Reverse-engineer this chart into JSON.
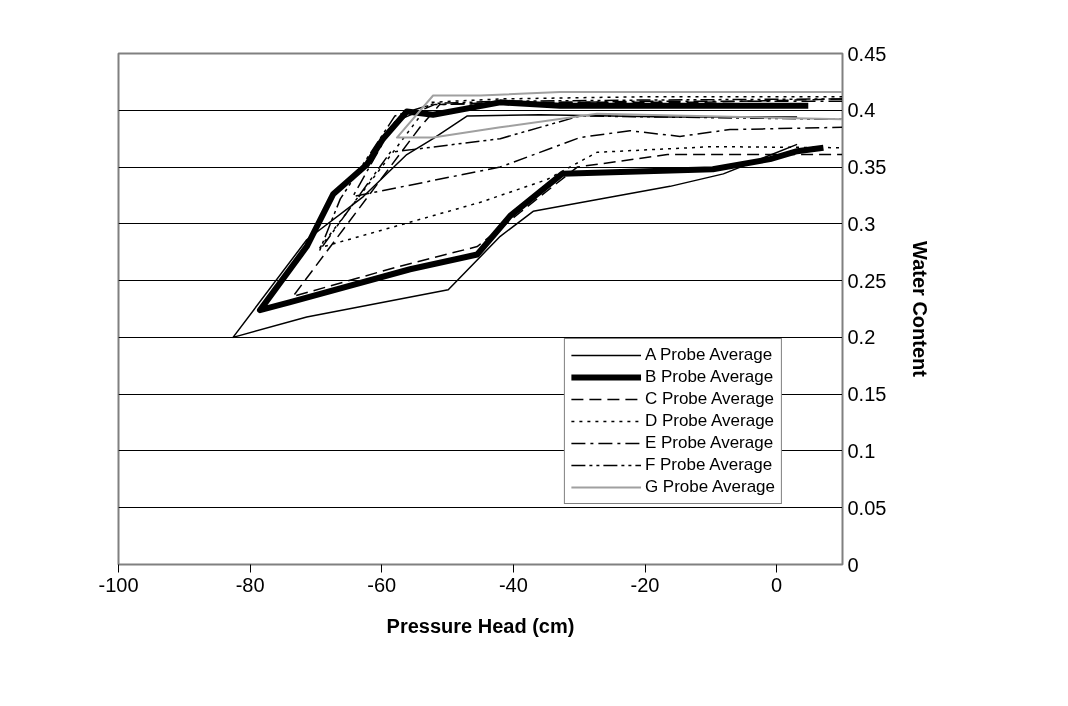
{
  "chart_data": {
    "type": "line",
    "xlabel": "Pressure Head (cm)",
    "ylabel": "Water Content",
    "xlim": [
      -100,
      10
    ],
    "xticks": [
      -100,
      -80,
      -60,
      -40,
      -20,
      0
    ],
    "ylim": [
      0,
      0.45
    ],
    "yticks": [
      0,
      0.05,
      0.1,
      0.15,
      0.2,
      0.25,
      0.3,
      0.35,
      0.4,
      0.45
    ],
    "grid": "y",
    "legend": "bottom right",
    "marker": "none",
    "series": [
      {
        "name": "A Probe Average",
        "color": "#000000",
        "line_style": "solid",
        "x": [
          3.1,
          -16.2,
          -36,
          -47,
          -52.2,
          -56.2,
          -62.8,
          -71.4,
          -82.6,
          -71.4,
          -49.9,
          -42,
          -37,
          -16.2,
          -8.1,
          3.1
        ],
        "values": [
          0.394,
          0.394,
          0.396,
          0.395,
          0.375,
          0.361,
          0.324,
          0.286,
          0.2,
          0.218,
          0.242,
          0.289,
          0.311,
          0.333,
          0.344,
          0.37
        ]
      },
      {
        "name": "B Probe Average",
        "color": "#000000",
        "line_style": "solid",
        "x": [
          4.8,
          -11.6,
          -32.9,
          -42,
          -52.2,
          -56.2,
          -59.8,
          -62.3,
          -67.4,
          -71.4,
          -78.5,
          -73.9,
          -55.7,
          -45.5,
          -40.5,
          -32.6,
          -9.7,
          -1,
          3.1,
          7.1
        ],
        "values": [
          0.404,
          0.404,
          0.404,
          0.407,
          0.396,
          0.399,
          0.375,
          0.352,
          0.326,
          0.28,
          0.224,
          0.231,
          0.26,
          0.273,
          0.307,
          0.344,
          0.348,
          0.357,
          0.364,
          0.367
        ]
      },
      {
        "name": "C Probe Average",
        "color": "#000000",
        "line_style": "dashed",
        "x": [
          10,
          -11.6,
          -32.9,
          -42,
          -51.2,
          -54.2,
          -73.5,
          -57.7,
          -45.5,
          -39,
          -30.3,
          -16.6,
          -1.4,
          10
        ],
        "values": [
          0.41,
          0.407,
          0.407,
          0.407,
          0.405,
          0.385,
          0.236,
          0.262,
          0.28,
          0.31,
          0.35,
          0.361,
          0.361,
          0.361
        ]
      },
      {
        "name": "D Probe Average",
        "color": "#000000",
        "line_style": "dotted",
        "x": [
          10,
          -19.2,
          -42,
          -52.6,
          -58.3,
          -69.4,
          -45,
          -34.9,
          -27.3,
          -9.7,
          10
        ],
        "values": [
          0.412,
          0.412,
          0.41,
          0.407,
          0.363,
          0.279,
          0.319,
          0.339,
          0.363,
          0.368,
          0.367
        ]
      },
      {
        "name": "E Probe Average",
        "color": "#000000",
        "line_style": "dashdot",
        "x": [
          10,
          -20,
          -42,
          -52,
          -58,
          -64.4,
          -42,
          -29.9,
          -22.3,
          -14.7,
          -7.1,
          10
        ],
        "values": [
          0.408,
          0.408,
          0.406,
          0.405,
          0.39,
          0.324,
          0.35,
          0.376,
          0.382,
          0.377,
          0.383,
          0.385
        ]
      },
      {
        "name": "F Probe Average",
        "color": "#000000",
        "line_style": "dashdotdot",
        "x": [
          10,
          -20,
          -42,
          -52,
          -58,
          -66.3,
          -69.4,
          -58.7,
          -42,
          -29.9,
          10
        ],
        "values": [
          0.41,
          0.409,
          0.408,
          0.406,
          0.395,
          0.322,
          0.277,
          0.363,
          0.375,
          0.395,
          0.392
        ]
      },
      {
        "name": "G Probe Average",
        "color": "#a0a0a0",
        "line_style": "solid",
        "x": [
          10,
          -11.6,
          -32.9,
          -45,
          -52.2,
          -57.7,
          -52.2,
          -42,
          -27.3,
          10
        ],
        "values": [
          0.416,
          0.416,
          0.416,
          0.413,
          0.413,
          0.376,
          0.376,
          0.385,
          0.397,
          0.392
        ]
      }
    ]
  }
}
